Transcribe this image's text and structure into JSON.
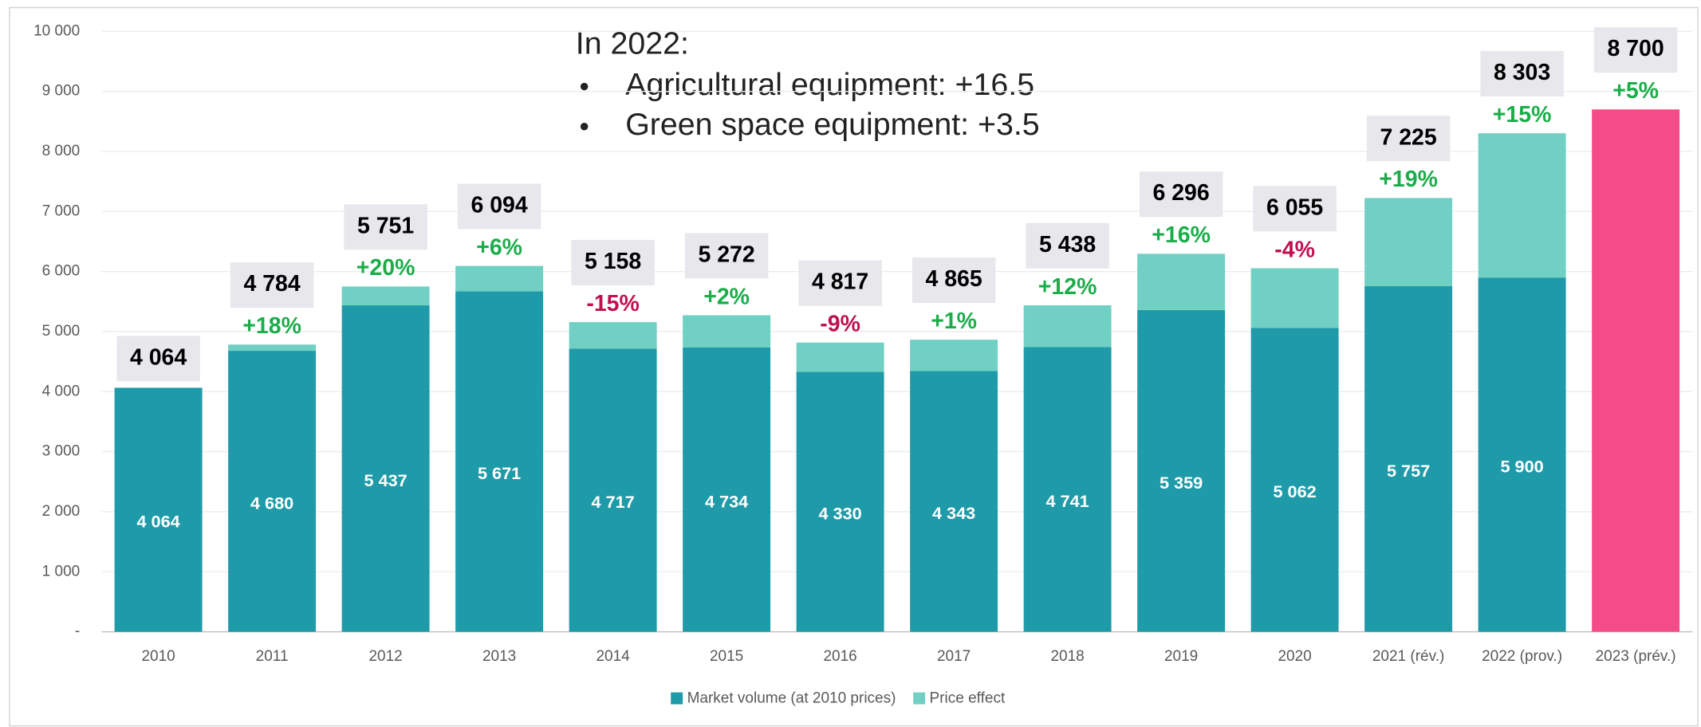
{
  "chart_data": {
    "type": "stacked_bar",
    "categories": [
      "2010",
      "2011",
      "2012",
      "2013",
      "2014",
      "2015",
      "2016",
      "2017",
      "2018",
      "2019",
      "2020",
      "2021 (rév.)",
      "2022 (prov.)",
      "2023 (prév.)"
    ],
    "series": [
      {
        "name": "Market volume (at 2010 prices)",
        "color": "#1f9aa8",
        "values": [
          4064,
          4680,
          5437,
          5671,
          4717,
          4734,
          4330,
          4343,
          4741,
          5359,
          5062,
          5757,
          5900,
          null
        ],
        "value_labels": [
          "4 064",
          "4 680",
          "5 437",
          "5 671",
          "4 717",
          "4 734",
          "4 330",
          "4 343",
          "4 741",
          "5 359",
          "5 062",
          "5 757",
          "5 900",
          null
        ]
      },
      {
        "name": "Price effect",
        "color": "#70d0c3",
        "values": [
          0,
          104,
          314,
          423,
          441,
          538,
          487,
          522,
          697,
          937,
          993,
          1468,
          2403,
          null
        ]
      },
      {
        "color": "#f54b87",
        "values": [
          null,
          null,
          null,
          null,
          null,
          null,
          null,
          null,
          null,
          null,
          null,
          null,
          null,
          8700
        ]
      }
    ],
    "totals": {
      "values": [
        4064,
        4784,
        5751,
        6094,
        5158,
        5272,
        4817,
        4865,
        5438,
        6296,
        6055,
        7225,
        8303,
        8700
      ],
      "value_labels": [
        "4 064",
        "4 784",
        "5 751",
        "6 094",
        "5 158",
        "5 272",
        "4 817",
        "4 865",
        "5 438",
        "6 296",
        "6 055",
        "7 225",
        "8 303",
        "8 700"
      ]
    },
    "growth": {
      "values": [
        null,
        18,
        20,
        6,
        -15,
        2,
        -9,
        1,
        12,
        16,
        -4,
        19,
        15,
        5
      ],
      "value_labels": [
        null,
        "+18%",
        "+20%",
        "+6%",
        "-15%",
        "+2%",
        "-9%",
        "+1%",
        "+12%",
        "+16%",
        "-4%",
        "+19%",
        "+15%",
        "+5%"
      ]
    },
    "annotation": {
      "heading": "In 2022:",
      "bullets": [
        "Agricultural equipment: +16.5",
        "Green space equipment: +3.5"
      ]
    },
    "ylim": [
      0,
      10000
    ],
    "yticks": [
      {
        "value": 0,
        "label": "-"
      },
      {
        "value": 1000,
        "label": "1 000"
      },
      {
        "value": 2000,
        "label": "2 000"
      },
      {
        "value": 3000,
        "label": "3 000"
      },
      {
        "value": 4000,
        "label": "4 000"
      },
      {
        "value": 5000,
        "label": "5 000"
      },
      {
        "value": 6000,
        "label": "6 000"
      },
      {
        "value": 7000,
        "label": "7 000"
      },
      {
        "value": 8000,
        "label": "8 000"
      },
      {
        "value": 9000,
        "label": "9 000"
      },
      {
        "value": 10000,
        "label": "10 000"
      }
    ],
    "grid": true,
    "legend": "bottom"
  }
}
